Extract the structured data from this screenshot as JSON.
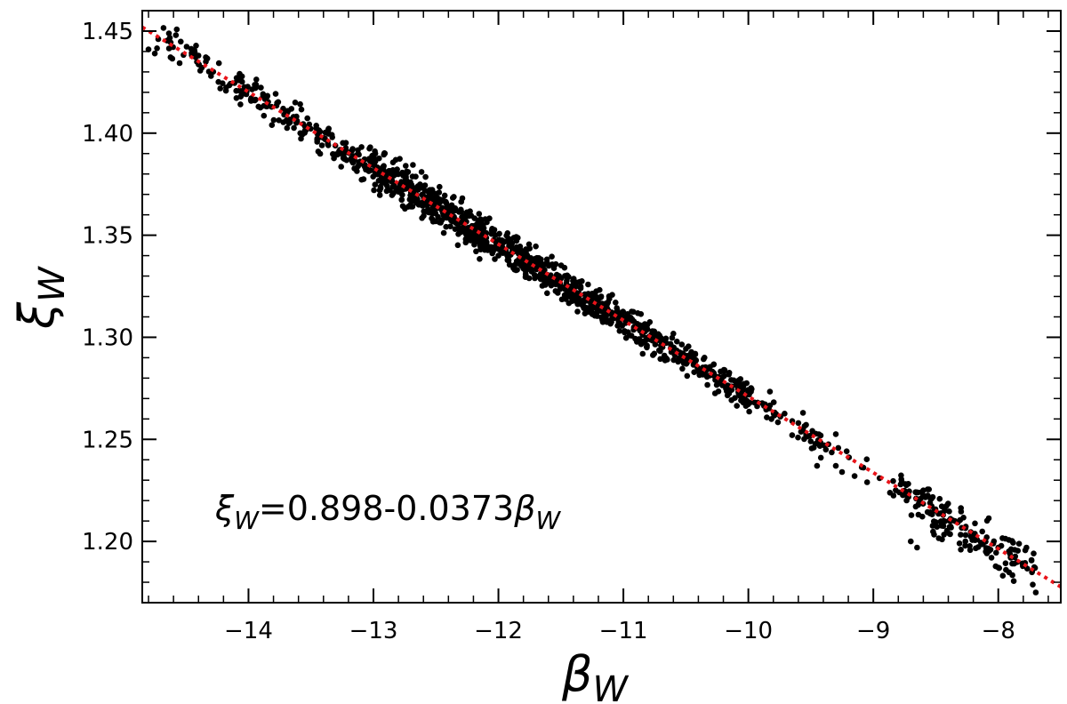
{
  "chart_data": {
    "type": "scatter",
    "xlabel": "β",
    "xlabel_sub": "W",
    "ylabel": "ξ",
    "ylabel_sub": "W",
    "xlim": [
      -14.85,
      -7.5
    ],
    "ylim": [
      1.17,
      1.46
    ],
    "xticks": [
      -14,
      -13,
      -12,
      -11,
      -10,
      -9,
      -8
    ],
    "xtick_labels": [
      "−14",
      "−13",
      "−12",
      "−11",
      "−10",
      "−9",
      "−8"
    ],
    "yticks": [
      1.2,
      1.25,
      1.3,
      1.35,
      1.4,
      1.45
    ],
    "ytick_labels": [
      "1.20",
      "1.25",
      "1.30",
      "1.35",
      "1.40",
      "1.45"
    ],
    "grid": false,
    "fit": {
      "intercept": 0.898,
      "slope": -0.0373,
      "color": "#e8141a",
      "style": "dotted"
    },
    "annotation": {
      "xi": "ξ",
      "sub": "W",
      "eq": "=0.898-0.0373",
      "beta": "β"
    },
    "clusters": [
      {
        "x_from": -14.8,
        "x_to": -14.1,
        "spread": 0.004,
        "count": 45
      },
      {
        "x_from": -14.1,
        "x_to": -13.0,
        "spread": 0.004,
        "count": 170
      },
      {
        "x_from": -13.0,
        "x_to": -12.1,
        "spread": 0.005,
        "count": 360
      },
      {
        "x_from": -12.1,
        "x_to": -11.1,
        "spread": 0.004,
        "count": 330
      },
      {
        "x_from": -11.1,
        "x_to": -10.0,
        "spread": 0.004,
        "count": 260
      },
      {
        "x_from": -10.0,
        "x_to": -9.4,
        "spread": 0.003,
        "count": 50
      },
      {
        "x_from": -9.4,
        "x_to": -8.8,
        "spread": 0.003,
        "count": 14
      },
      {
        "x_from": -8.8,
        "x_to": -7.7,
        "spread": 0.005,
        "count": 170
      }
    ],
    "points": [
      {
        "x": -14.8,
        "y": 1.441
      },
      {
        "x": -14.75,
        "y": 1.439
      },
      {
        "x": -14.4,
        "y": 1.438
      },
      {
        "x": -14.3,
        "y": 1.428
      },
      {
        "x": -13.95,
        "y": 1.416
      },
      {
        "x": -13.85,
        "y": 1.418
      },
      {
        "x": -13.92,
        "y": 1.413
      },
      {
        "x": -12.95,
        "y": 1.372
      },
      {
        "x": -12.9,
        "y": 1.376
      },
      {
        "x": -11.45,
        "y": 1.322
      },
      {
        "x": -11.4,
        "y": 1.326
      },
      {
        "x": -10.95,
        "y": 1.301
      },
      {
        "x": -10.85,
        "y": 1.298
      },
      {
        "x": -10.7,
        "y": 1.296
      },
      {
        "x": -9.95,
        "y": 1.268
      },
      {
        "x": -9.6,
        "y": 1.258
      },
      {
        "x": -9.42,
        "y": 1.241
      },
      {
        "x": -9.45,
        "y": 1.237
      },
      {
        "x": -9.38,
        "y": 1.245
      },
      {
        "x": -9.3,
        "y": 1.237
      },
      {
        "x": -9.25,
        "y": 1.234
      },
      {
        "x": -9.15,
        "y": 1.232
      },
      {
        "x": -9.05,
        "y": 1.229
      },
      {
        "x": -8.95,
        "y": 1.231
      },
      {
        "x": -8.6,
        "y": 1.225
      },
      {
        "x": -8.7,
        "y": 1.2
      },
      {
        "x": -8.65,
        "y": 1.197
      },
      {
        "x": -8.45,
        "y": 1.201
      },
      {
        "x": -8.3,
        "y": 1.196
      },
      {
        "x": -8.1,
        "y": 1.195
      },
      {
        "x": -8.0,
        "y": 1.197
      },
      {
        "x": -7.9,
        "y": 1.192
      },
      {
        "x": -7.7,
        "y": 1.175
      }
    ]
  }
}
